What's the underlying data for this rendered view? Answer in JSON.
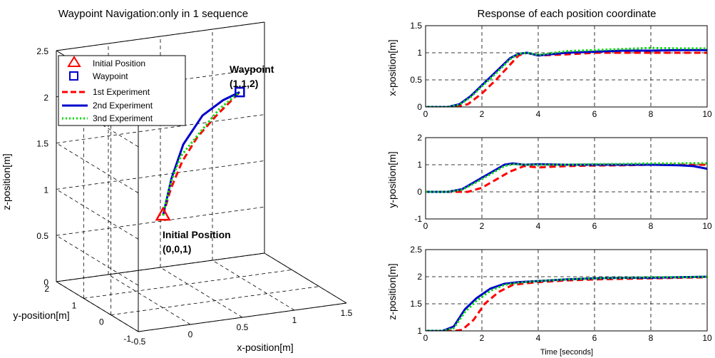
{
  "chart_data": [
    {
      "type": "line3d",
      "title": "Waypoint Navigation:only in 1 sequence",
      "xlabel": "x-position[m]",
      "ylabel": "y-position[m]",
      "zlabel": "z-position[m]",
      "xlim": [
        -0.5,
        1.5
      ],
      "ylim": [
        -1,
        2
      ],
      "zlim": [
        0,
        2.5
      ],
      "xticks": [
        "-0.5",
        "0",
        "0.5",
        "1",
        "1.5"
      ],
      "yticks": [
        "-1",
        "0",
        "1",
        "2"
      ],
      "zticks": [
        "0",
        "0.5",
        "1",
        "1.5",
        "2",
        "2.5"
      ],
      "grid": true,
      "legend_placement": "top-left",
      "legend": [
        "Initial Position",
        "Waypoint",
        "1st Experiment",
        "2nd Experiment",
        "3nd Experiment"
      ],
      "markers": [
        {
          "name": "Initial Position",
          "shape": "triangle",
          "color": "#ff0000",
          "x": 0,
          "y": 0,
          "z": 1
        },
        {
          "name": "Waypoint",
          "shape": "square",
          "color": "#0000cc",
          "x": 1,
          "y": 1,
          "z": 2
        }
      ],
      "annotations": [
        {
          "line1": "Initial Position",
          "line2": "(0,0,1)"
        },
        {
          "line1": "Waypoint",
          "line2": "(1,1,2)"
        }
      ],
      "series": [
        {
          "name": "1st Experiment",
          "color": "#ff0000",
          "style": "dashed",
          "points": [
            [
              0,
              0,
              1
            ],
            [
              0.1,
              0.1,
              1.25
            ],
            [
              0.25,
              0.25,
              1.5
            ],
            [
              0.45,
              0.45,
              1.7
            ],
            [
              0.7,
              0.7,
              1.85
            ],
            [
              0.9,
              0.9,
              1.95
            ],
            [
              1,
              1,
              2
            ]
          ]
        },
        {
          "name": "2nd Experiment",
          "color": "#0000cc",
          "style": "solid",
          "points": [
            [
              0,
              0,
              1
            ],
            [
              0.12,
              0.15,
              1.35
            ],
            [
              0.3,
              0.4,
              1.65
            ],
            [
              0.55,
              0.65,
              1.88
            ],
            [
              0.8,
              0.85,
              1.97
            ],
            [
              1,
              1,
              2
            ]
          ]
        },
        {
          "name": "3nd Experiment",
          "color": "#00dd00",
          "style": "dotted",
          "points": [
            [
              0,
              0,
              1
            ],
            [
              0.1,
              0.12,
              1.3
            ],
            [
              0.25,
              0.3,
              1.55
            ],
            [
              0.5,
              0.5,
              1.75
            ],
            [
              0.75,
              0.78,
              1.9
            ],
            [
              1,
              1,
              2
            ]
          ]
        }
      ]
    },
    {
      "type": "line",
      "title": "Response of each position coordinate",
      "xlabel": "",
      "ylabel": "x-position[m]",
      "xlim": [
        0,
        10
      ],
      "ylim": [
        0,
        1.5
      ],
      "xticks": [
        "0",
        "2",
        "4",
        "6",
        "8",
        "10"
      ],
      "yticks": [
        "0",
        "0.5",
        "1",
        "1.5"
      ],
      "grid": true,
      "series": [
        {
          "name": "1st Experiment",
          "color": "#ff0000",
          "style": "dashed",
          "x": [
            0,
            1,
            1.5,
            2,
            2.5,
            3,
            3.3,
            3.6,
            4,
            5,
            6,
            7,
            8,
            9,
            10
          ],
          "y": [
            0,
            0,
            0.05,
            0.25,
            0.5,
            0.78,
            0.95,
            1.0,
            0.95,
            0.97,
            1.0,
            1.0,
            1.0,
            1.0,
            1.0
          ]
        },
        {
          "name": "2nd Experiment",
          "color": "#0000cc",
          "style": "solid",
          "x": [
            0,
            0.8,
            1.2,
            1.6,
            2,
            2.5,
            3,
            3.3,
            3.6,
            4,
            5,
            6,
            7,
            8,
            9,
            10
          ],
          "y": [
            0,
            0,
            0.05,
            0.2,
            0.4,
            0.65,
            0.9,
            0.98,
            1.0,
            0.95,
            1.0,
            1.02,
            1.04,
            1.04,
            1.05,
            1.05
          ]
        },
        {
          "name": "3nd Experiment",
          "color": "#00dd00",
          "style": "dotted",
          "x": [
            0,
            0.8,
            1.2,
            1.6,
            2,
            2.5,
            3,
            3.3,
            3.6,
            4,
            5,
            6,
            7,
            8,
            9,
            10
          ],
          "y": [
            0,
            0,
            0.04,
            0.18,
            0.38,
            0.62,
            0.88,
            0.98,
            1.0,
            0.96,
            1.03,
            1.05,
            1.07,
            1.09,
            1.08,
            1.08
          ]
        }
      ]
    },
    {
      "type": "line",
      "title": "",
      "xlabel": "",
      "ylabel": "y-position[m]",
      "xlim": [
        0,
        10
      ],
      "ylim": [
        -1,
        2
      ],
      "xticks": [
        "0",
        "2",
        "4",
        "6",
        "8",
        "10"
      ],
      "yticks": [
        "-1",
        "0",
        "1",
        "2"
      ],
      "grid": true,
      "series": [
        {
          "name": "1st Experiment",
          "color": "#ff0000",
          "style": "dashed",
          "x": [
            0,
            1,
            1.5,
            2,
            2.5,
            3,
            3.5,
            4,
            5,
            6,
            7,
            8,
            9,
            10
          ],
          "y": [
            0,
            0,
            0,
            0.15,
            0.45,
            0.75,
            0.95,
            0.9,
            0.95,
            0.97,
            0.98,
            1.0,
            1.0,
            1.0
          ]
        },
        {
          "name": "2nd Experiment",
          "color": "#0000cc",
          "style": "solid",
          "x": [
            0,
            0.8,
            1.3,
            1.8,
            2.3,
            2.8,
            3.1,
            3.5,
            4,
            5,
            6,
            7,
            8,
            9,
            9.5,
            10
          ],
          "y": [
            0,
            0,
            0.1,
            0.4,
            0.7,
            1.0,
            1.05,
            1.0,
            1.02,
            1.0,
            1.0,
            1.0,
            1.0,
            0.98,
            0.95,
            0.85
          ]
        },
        {
          "name": "3nd Experiment",
          "color": "#00dd00",
          "style": "dotted",
          "x": [
            0,
            0.8,
            1.3,
            1.8,
            2.3,
            2.8,
            3.1,
            3.5,
            4,
            5,
            6,
            7,
            8,
            9,
            9.5,
            10
          ],
          "y": [
            0,
            0,
            0.08,
            0.35,
            0.65,
            0.95,
            1.02,
            1.0,
            1.0,
            1.0,
            1.02,
            1.03,
            1.05,
            1.05,
            1.06,
            1.05
          ]
        }
      ]
    },
    {
      "type": "line",
      "title": "",
      "xlabel": "Time [seconds]",
      "ylabel": "z-position[m]",
      "xlim": [
        0,
        10
      ],
      "ylim": [
        1,
        2.5
      ],
      "xticks": [
        "0",
        "2",
        "4",
        "6",
        "8",
        "10"
      ],
      "yticks": [
        "1",
        "1.5",
        "2",
        "2.5"
      ],
      "grid": true,
      "series": [
        {
          "name": "1st Experiment",
          "color": "#ff0000",
          "style": "dashed",
          "x": [
            0,
            1,
            1.3,
            1.7,
            2.1,
            2.6,
            3.1,
            3.6,
            4,
            5,
            6,
            7,
            8,
            9,
            10
          ],
          "y": [
            1,
            1,
            1.02,
            1.2,
            1.5,
            1.72,
            1.85,
            1.88,
            1.9,
            1.93,
            1.95,
            1.96,
            1.97,
            1.98,
            1.99
          ]
        },
        {
          "name": "2nd Experiment",
          "color": "#0000cc",
          "style": "solid",
          "x": [
            0,
            0.6,
            1.0,
            1.4,
            1.8,
            2.3,
            2.8,
            3.3,
            4,
            5,
            6,
            7,
            8,
            9,
            10
          ],
          "y": [
            1,
            1,
            1.08,
            1.4,
            1.6,
            1.78,
            1.87,
            1.9,
            1.92,
            1.95,
            1.97,
            1.98,
            1.98,
            1.99,
            2.0
          ]
        },
        {
          "name": "3nd Experiment",
          "color": "#00dd00",
          "style": "dotted",
          "x": [
            0,
            0.6,
            1.0,
            1.4,
            1.8,
            2.3,
            2.8,
            3.3,
            4,
            5,
            6,
            7,
            8,
            9,
            10
          ],
          "y": [
            1,
            1,
            1.05,
            1.35,
            1.55,
            1.74,
            1.85,
            1.89,
            1.92,
            1.95,
            1.97,
            1.98,
            1.99,
            1.99,
            2.0
          ]
        }
      ]
    }
  ]
}
